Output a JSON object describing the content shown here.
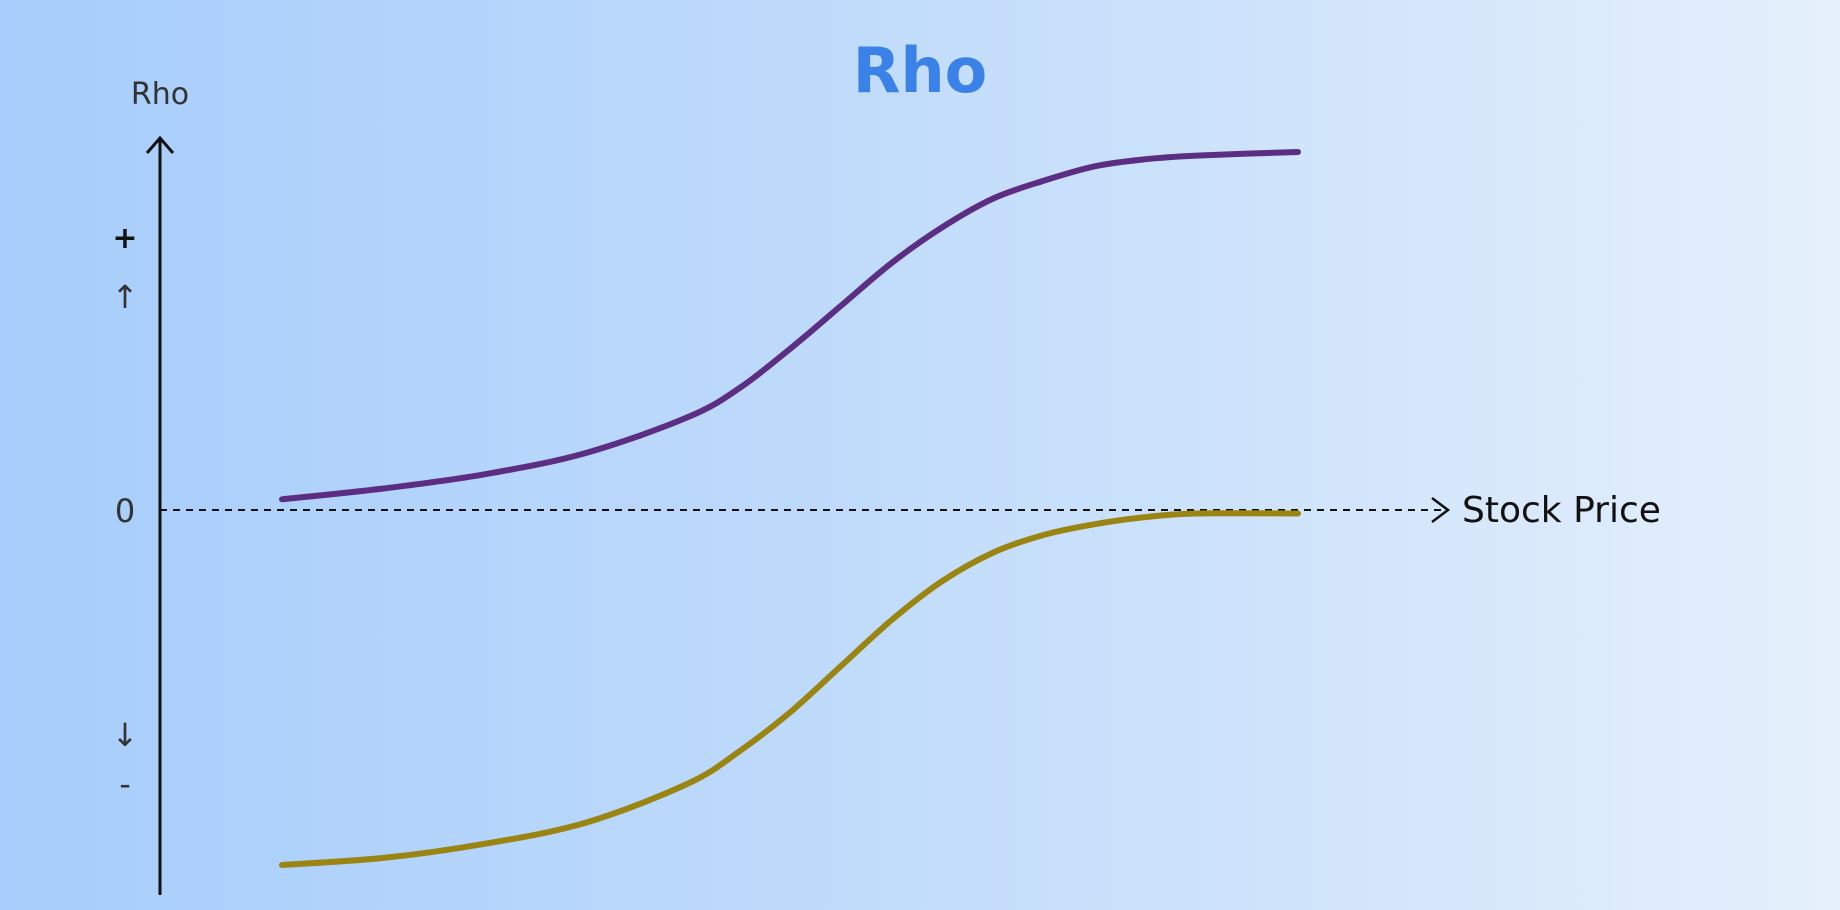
{
  "chart_data": {
    "type": "line",
    "title": "Rho",
    "xlabel": "Stock Price",
    "ylabel": "Rho",
    "y_ticks": {
      "plus": "+",
      "up_arrow": "↑",
      "zero": "0",
      "down_arrow": "↓",
      "minus": "-"
    },
    "xlim": [
      0,
      100
    ],
    "ylim": [
      -1,
      1
    ],
    "series": [
      {
        "color": "#5b2e83",
        "x": [
          0,
          10,
          20,
          30,
          40,
          45,
          50,
          55,
          60,
          65,
          70,
          75,
          80,
          85,
          90,
          100
        ],
        "y": [
          0.03,
          0.06,
          0.1,
          0.16,
          0.26,
          0.34,
          0.45,
          0.57,
          0.69,
          0.79,
          0.87,
          0.92,
          0.96,
          0.98,
          0.99,
          1.0
        ]
      },
      {
        "color": "#9a8412",
        "x": [
          0,
          10,
          20,
          30,
          40,
          45,
          50,
          55,
          60,
          65,
          70,
          75,
          80,
          85,
          90,
          100
        ],
        "y": [
          -1.0,
          -0.98,
          -0.94,
          -0.88,
          -0.77,
          -0.68,
          -0.57,
          -0.44,
          -0.31,
          -0.2,
          -0.12,
          -0.07,
          -0.04,
          -0.02,
          -0.01,
          -0.01
        ]
      }
    ],
    "colors": {
      "title": "#3b82e8",
      "axis": "#111111"
    }
  }
}
